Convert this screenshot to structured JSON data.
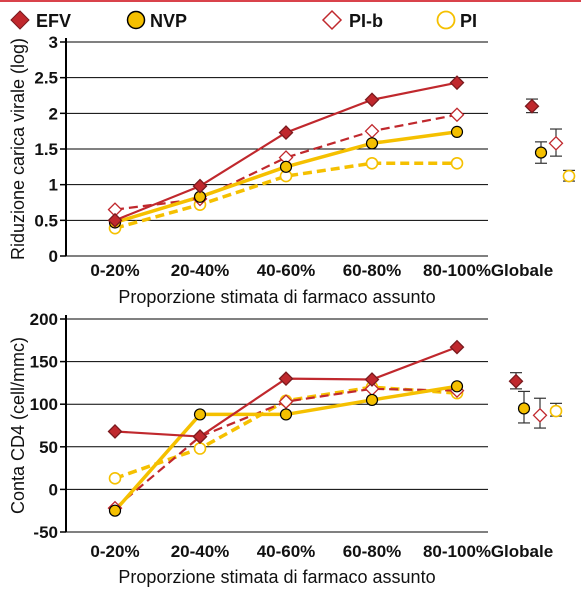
{
  "colors": {
    "efv": "#c0282d",
    "nvp": "#f5c000",
    "top_rule": "#d9434b",
    "axis": "#000000",
    "grid": "#000000"
  },
  "legend": [
    {
      "key": "efv",
      "label": "EFV",
      "marker": "diamond",
      "filled": true,
      "color": "#c0282d"
    },
    {
      "key": "nvp",
      "label": "NVP",
      "marker": "circle",
      "filled": true,
      "color": "#f5c000"
    },
    {
      "key": "pib",
      "label": "PI-b",
      "marker": "diamond",
      "filled": false,
      "color": "#c0282d"
    },
    {
      "key": "pi",
      "label": "PI",
      "marker": "circle",
      "filled": false,
      "color": "#f5c000"
    }
  ],
  "chart_data": [
    {
      "type": "line",
      "xlabel": "Proporzione stimata di farmaco assunto",
      "ylabel": "Riduzione carica virale (log)",
      "categories": [
        "0-20%",
        "20-40%",
        "40-60%",
        "60-80%",
        "80-100%"
      ],
      "overall_label": "Globale",
      "yticks": [
        "0",
        "0.5",
        "1",
        "1.5",
        "2",
        "2.5",
        "3"
      ],
      "ylim": [
        0,
        3
      ],
      "grid": "horizontal",
      "series": [
        {
          "name": "EFV",
          "color": "#c0282d",
          "style": "solid",
          "marker": "diamond",
          "filled": true,
          "values": [
            0.5,
            0.98,
            1.73,
            2.19,
            2.43
          ],
          "overall": {
            "value": 2.1,
            "error": [
              2.01,
              2.2
            ]
          }
        },
        {
          "name": "NVP",
          "color": "#f5c000",
          "style": "solid",
          "marker": "circle",
          "filled": true,
          "values": [
            0.47,
            0.83,
            1.25,
            1.58,
            1.74
          ],
          "overall": {
            "value": 1.45,
            "error": [
              1.3,
              1.6
            ]
          }
        },
        {
          "name": "PI-b",
          "color": "#c0282d",
          "style": "dashed",
          "marker": "diamond",
          "filled": false,
          "values": [
            0.65,
            0.8,
            1.38,
            1.75,
            1.98
          ],
          "overall": {
            "value": 1.58,
            "error": [
              1.4,
              1.78
            ]
          }
        },
        {
          "name": "PI",
          "color": "#f5c000",
          "style": "dashed",
          "marker": "circle",
          "filled": false,
          "values": [
            0.39,
            0.72,
            1.12,
            1.3,
            1.3
          ],
          "overall": {
            "value": 1.12,
            "error": [
              1.05,
              1.2
            ]
          }
        }
      ]
    },
    {
      "type": "line",
      "xlabel": "Proporzione stimata di farmaco assunto",
      "ylabel": "Conta CD4 (cell/mmc)",
      "categories": [
        "0-20%",
        "20-40%",
        "40-60%",
        "60-80%",
        "80-100%"
      ],
      "overall_label": "Globale",
      "yticks": [
        "-50",
        "0",
        "50",
        "100",
        "150",
        "200"
      ],
      "ylim": [
        -50,
        200
      ],
      "grid": "horizontal",
      "series": [
        {
          "name": "EFV",
          "color": "#c0282d",
          "style": "solid",
          "marker": "diamond",
          "filled": true,
          "values": [
            68,
            62,
            130,
            129,
            167
          ],
          "overall": {
            "value": 127,
            "error": [
              118,
              137
            ]
          }
        },
        {
          "name": "NVP",
          "color": "#f5c000",
          "style": "solid",
          "marker": "circle",
          "filled": true,
          "values": [
            -25,
            88,
            88,
            105,
            121
          ],
          "overall": {
            "value": 95,
            "error": [
              78,
              115
            ]
          }
        },
        {
          "name": "PI-b",
          "color": "#c0282d",
          "style": "dashed",
          "marker": "diamond",
          "filled": false,
          "values": [
            -22,
            62,
            103,
            118,
            116
          ],
          "overall": {
            "value": 87,
            "error": [
              72,
              107
            ]
          }
        },
        {
          "name": "PI",
          "color": "#f5c000",
          "style": "dashed",
          "marker": "circle",
          "filled": false,
          "values": [
            13,
            48,
            104,
            120,
            113
          ],
          "overall": {
            "value": 92,
            "error": [
              86,
              101
            ]
          }
        }
      ]
    }
  ]
}
